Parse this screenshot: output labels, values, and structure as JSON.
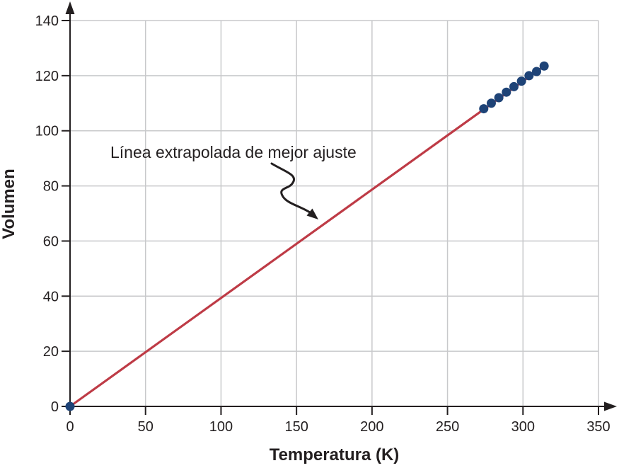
{
  "figure": {
    "background": "#ffffff",
    "annotation_text": "Línea extrapolada de mejor ajuste",
    "x_axis_title": "Temperatura (K)",
    "y_axis_title": "Volumen"
  },
  "chart_data": {
    "type": "scatter",
    "title": "",
    "xlabel": "Temperatura (K)",
    "ylabel": "Volumen",
    "xlim": [
      0,
      350
    ],
    "ylim": [
      0,
      140
    ],
    "x_ticks": [
      0,
      50,
      100,
      150,
      200,
      250,
      300,
      350
    ],
    "y_ticks": [
      0,
      20,
      40,
      60,
      80,
      100,
      120,
      140
    ],
    "grid": true,
    "legend": "none",
    "axis_color": "#231f20",
    "grid_color": "#c8c9cb",
    "series": [
      {
        "name": "linea-extrapolada-de-mejor-ajuste",
        "type": "line",
        "color": "#be3b46",
        "points": [
          [
            0,
            0
          ],
          [
            314,
            123.5
          ]
        ]
      },
      {
        "name": "datos-medidos",
        "type": "scatter",
        "color": "#1e4377",
        "points": [
          [
            0,
            0
          ],
          [
            274,
            108
          ],
          [
            279,
            110
          ],
          [
            284,
            112
          ],
          [
            289,
            114
          ],
          [
            294,
            116
          ],
          [
            299,
            118
          ],
          [
            304,
            120
          ],
          [
            309,
            121.5
          ],
          [
            314,
            123.5
          ]
        ]
      }
    ],
    "annotation": {
      "text": "Línea extrapolada de mejor ajuste",
      "arrow_tip_data": [
        164,
        68
      ]
    }
  }
}
